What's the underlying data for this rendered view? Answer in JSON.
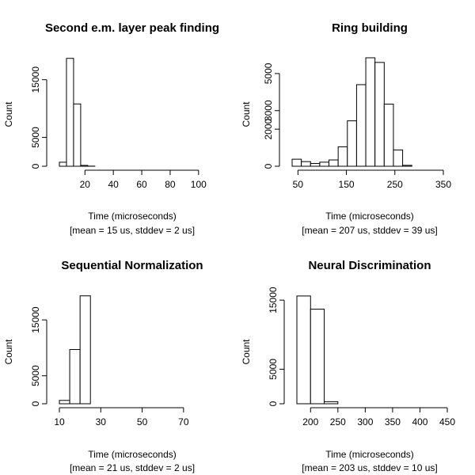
{
  "chart_data": [
    {
      "type": "bar",
      "title": "Second e.m. layer peak finding",
      "xlabel": "Time (microseconds)",
      "summary": "[mean = 15 us, stddev = 2 us]",
      "ylabel": "Count",
      "xlim": [
        2,
        104
      ],
      "ylim": [
        0,
        18800
      ],
      "x_ticks": [
        20,
        40,
        60,
        80,
        100
      ],
      "y_ticks": [
        0,
        5000,
        15000
      ],
      "bins": [
        {
          "x0": 2,
          "x1": 7,
          "value": 700
        },
        {
          "x0": 7,
          "x1": 12,
          "value": 18700
        },
        {
          "x0": 12,
          "x1": 17,
          "value": 10800
        },
        {
          "x0": 17,
          "x1": 22,
          "value": 150
        },
        {
          "x0": 22,
          "x1": 27,
          "value": 20
        },
        {
          "x0": 27,
          "x1": 102,
          "value": 0
        }
      ]
    },
    {
      "type": "bar",
      "title": "Ring building",
      "xlabel": "Time (microseconds)",
      "summary": "[mean = 207 us, stddev = 39 us]",
      "ylabel": "Count",
      "xlim": [
        38,
        350
      ],
      "ylim": [
        0,
        5850
      ],
      "x_ticks": [
        50,
        150,
        250,
        350
      ],
      "y_ticks": [
        0,
        2000,
        3000,
        5000
      ],
      "bins": [
        {
          "x0": 38,
          "x1": 57,
          "value": 380
        },
        {
          "x0": 57,
          "x1": 76,
          "value": 250
        },
        {
          "x0": 76,
          "x1": 95,
          "value": 150
        },
        {
          "x0": 95,
          "x1": 114,
          "value": 220
        },
        {
          "x0": 114,
          "x1": 133,
          "value": 340
        },
        {
          "x0": 133,
          "x1": 152,
          "value": 1050
        },
        {
          "x0": 152,
          "x1": 171,
          "value": 2450
        },
        {
          "x0": 171,
          "x1": 190,
          "value": 4400
        },
        {
          "x0": 190,
          "x1": 209,
          "value": 5850
        },
        {
          "x0": 209,
          "x1": 228,
          "value": 5600
        },
        {
          "x0": 228,
          "x1": 247,
          "value": 3350
        },
        {
          "x0": 247,
          "x1": 266,
          "value": 880
        },
        {
          "x0": 266,
          "x1": 285,
          "value": 50
        },
        {
          "x0": 285,
          "x1": 345,
          "value": 0
        }
      ]
    },
    {
      "type": "bar",
      "title": "Sequential Normalization",
      "xlabel": "Time (microseconds)",
      "summary": "[mean = 21 us, stddev = 2 us]",
      "ylabel": "Count",
      "xlim": [
        10,
        80
      ],
      "ylim": [
        0,
        19400
      ],
      "x_ticks": [
        10,
        30,
        50,
        70
      ],
      "y_ticks": [
        0,
        5000,
        15000
      ],
      "bins": [
        {
          "x0": 10,
          "x1": 15,
          "value": 600
        },
        {
          "x0": 15,
          "x1": 20,
          "value": 9700
        },
        {
          "x0": 20,
          "x1": 25,
          "value": 19300
        },
        {
          "x0": 25,
          "x1": 80,
          "value": 0
        }
      ]
    },
    {
      "type": "bar",
      "title": "Neural Discrimination",
      "xlabel": "Time (microseconds)",
      "summary": "[mean = 203 us, stddev = 10 us]",
      "ylabel": "Count",
      "xlim": [
        175,
        450
      ],
      "ylim": [
        0,
        15700
      ],
      "x_ticks": [
        200,
        250,
        300,
        350,
        400,
        450
      ],
      "y_ticks": [
        0,
        5000,
        15000
      ],
      "bins": [
        {
          "x0": 175,
          "x1": 200,
          "value": 15600
        },
        {
          "x0": 200,
          "x1": 225,
          "value": 13700
        },
        {
          "x0": 225,
          "x1": 250,
          "value": 300
        },
        {
          "x0": 250,
          "x1": 445,
          "value": 0
        }
      ]
    }
  ]
}
